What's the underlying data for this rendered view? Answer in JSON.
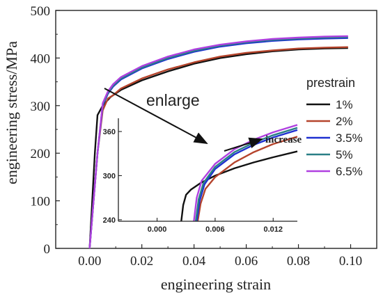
{
  "chart_data": {
    "type": "line",
    "xlabel": "engineering strain",
    "ylabel": "engineering stress/MPa",
    "xlim": [
      -0.013,
      0.11
    ],
    "ylim": [
      0,
      500
    ],
    "x_ticks": [
      0.0,
      0.02,
      0.04,
      0.06,
      0.08,
      0.1
    ],
    "x_tick_labels": [
      "0.00",
      "0.02",
      "0.04",
      "0.06",
      "0.08",
      "0.10"
    ],
    "y_ticks": [
      0,
      100,
      200,
      300,
      400,
      500
    ],
    "y_tick_labels": [
      "0",
      "100",
      "200",
      "300",
      "400",
      "500"
    ],
    "grid": false,
    "legend": {
      "title": "prestrain",
      "placement": "right",
      "entries": [
        "1%",
        "2%",
        "3.5%",
        "5%",
        "6.5%"
      ]
    },
    "series": [
      {
        "name": "1%",
        "color": "#111111",
        "x": [
          0,
          0.002,
          0.003,
          0.005,
          0.008,
          0.012,
          0.02,
          0.03,
          0.04,
          0.05,
          0.06,
          0.07,
          0.08,
          0.09,
          0.099
        ],
        "y": [
          0,
          200,
          280,
          300,
          318,
          333,
          353,
          372,
          388,
          400,
          408,
          414,
          418,
          420,
          421
        ]
      },
      {
        "name": "2%",
        "color": "#b5442c",
        "x": [
          0,
          0.003,
          0.005,
          0.007,
          0.009,
          0.012,
          0.02,
          0.03,
          0.04,
          0.05,
          0.06,
          0.07,
          0.08,
          0.09,
          0.099
        ],
        "y": [
          0,
          200,
          290,
          315,
          322,
          336,
          357,
          376,
          391,
          403,
          411,
          416,
          420,
          422,
          423
        ]
      },
      {
        "name": "3.5%",
        "color": "#1e2fd0",
        "x": [
          0,
          0.003,
          0.005,
          0.007,
          0.009,
          0.012,
          0.02,
          0.03,
          0.04,
          0.05,
          0.06,
          0.07,
          0.08,
          0.09,
          0.099
        ],
        "y": [
          0,
          200,
          300,
          325,
          340,
          355,
          378,
          398,
          413,
          424,
          431,
          436,
          439,
          441,
          442
        ]
      },
      {
        "name": "5%",
        "color": "#2a7f86",
        "x": [
          0,
          0.003,
          0.005,
          0.007,
          0.009,
          0.012,
          0.02,
          0.03,
          0.04,
          0.05,
          0.06,
          0.07,
          0.08,
          0.09,
          0.099
        ],
        "y": [
          0,
          200,
          302,
          327,
          342,
          357,
          380,
          400,
          415,
          426,
          433,
          438,
          441,
          443,
          444
        ]
      },
      {
        "name": "6.5%",
        "color": "#b040e0",
        "x": [
          0,
          0.003,
          0.005,
          0.007,
          0.009,
          0.012,
          0.02,
          0.03,
          0.04,
          0.05,
          0.06,
          0.07,
          0.08,
          0.09,
          0.099
        ],
        "y": [
          0,
          200,
          305,
          330,
          345,
          360,
          383,
          403,
          418,
          428,
          435,
          440,
          443,
          445,
          446
        ]
      }
    ],
    "annotations": [
      "enlarge",
      "increase"
    ],
    "inset": {
      "xlim": [
        -0.004,
        0.0145
      ],
      "ylim": [
        238,
        378
      ],
      "x_ticks": [
        0.0,
        0.006,
        0.012
      ],
      "x_tick_labels": [
        "0.000",
        "0.006",
        "0.012"
      ],
      "y_ticks": [
        240,
        300,
        360
      ],
      "y_tick_labels": [
        "240",
        "300",
        "360"
      ],
      "series": [
        {
          "name": "1%",
          "color": "#111111",
          "x": [
            0.0025,
            0.0027,
            0.003,
            0.0035,
            0.0045,
            0.006,
            0.008,
            0.01,
            0.012,
            0.0145
          ],
          "y": [
            238,
            260,
            274,
            281,
            290,
            300,
            310,
            318,
            325,
            333
          ]
        },
        {
          "name": "2%",
          "color": "#b5442c",
          "x": [
            0.0042,
            0.0045,
            0.005,
            0.006,
            0.008,
            0.01,
            0.012,
            0.0145
          ],
          "y": [
            238,
            262,
            282,
            298,
            318,
            332,
            343,
            353
          ]
        },
        {
          "name": "3.5%",
          "color": "#1e2fd0",
          "x": [
            0.0041,
            0.0044,
            0.0049,
            0.006,
            0.008,
            0.01,
            0.012,
            0.0145
          ],
          "y": [
            238,
            266,
            288,
            309,
            329,
            342,
            352,
            362
          ]
        },
        {
          "name": "5%",
          "color": "#2a7f86",
          "x": [
            0.004,
            0.0043,
            0.0048,
            0.006,
            0.008,
            0.01,
            0.012,
            0.0145
          ],
          "y": [
            238,
            268,
            290,
            312,
            332,
            345,
            355,
            365
          ]
        },
        {
          "name": "6.5%",
          "color": "#b040e0",
          "x": [
            0.0038,
            0.0041,
            0.0046,
            0.006,
            0.008,
            0.01,
            0.012,
            0.0145
          ],
          "y": [
            238,
            270,
            293,
            316,
            336,
            349,
            359,
            369
          ]
        }
      ]
    }
  }
}
